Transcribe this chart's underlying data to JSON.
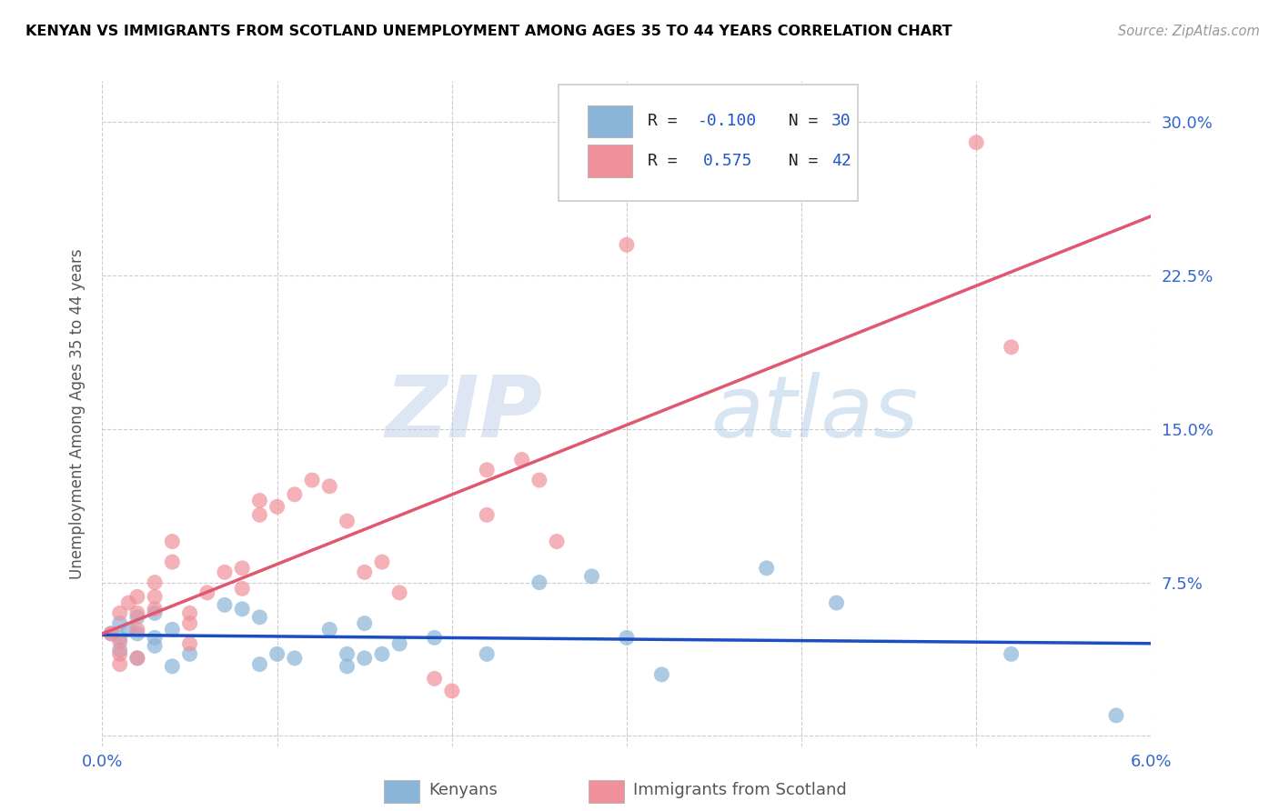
{
  "title": "KENYAN VS IMMIGRANTS FROM SCOTLAND UNEMPLOYMENT AMONG AGES 35 TO 44 YEARS CORRELATION CHART",
  "source": "Source: ZipAtlas.com",
  "ylabel": "Unemployment Among Ages 35 to 44 years",
  "xlim": [
    0.0,
    0.06
  ],
  "ylim": [
    -0.005,
    0.32
  ],
  "kenyan_color": "#8ab4d8",
  "scotland_color": "#f0909a",
  "kenyan_line_color": "#1a4fc4",
  "scotland_line_color": "#e05870",
  "watermark_zip": "ZIP",
  "watermark_atlas": "atlas",
  "kenyan_x": [
    0.0005,
    0.001,
    0.001,
    0.001,
    0.0015,
    0.002,
    0.002,
    0.002,
    0.003,
    0.003,
    0.003,
    0.004,
    0.004,
    0.005,
    0.007,
    0.008,
    0.009,
    0.009,
    0.01,
    0.011,
    0.013,
    0.014,
    0.014,
    0.015,
    0.015,
    0.016,
    0.017,
    0.019,
    0.022,
    0.025,
    0.028,
    0.03,
    0.032,
    0.038,
    0.042,
    0.052,
    0.058
  ],
  "kenyan_y": [
    0.05,
    0.048,
    0.055,
    0.042,
    0.052,
    0.05,
    0.058,
    0.038,
    0.048,
    0.044,
    0.06,
    0.034,
    0.052,
    0.04,
    0.064,
    0.062,
    0.058,
    0.035,
    0.04,
    0.038,
    0.052,
    0.034,
    0.04,
    0.055,
    0.038,
    0.04,
    0.045,
    0.048,
    0.04,
    0.075,
    0.078,
    0.048,
    0.03,
    0.082,
    0.065,
    0.04,
    0.01
  ],
  "scotland_x": [
    0.0005,
    0.001,
    0.001,
    0.001,
    0.001,
    0.0015,
    0.002,
    0.002,
    0.002,
    0.002,
    0.003,
    0.003,
    0.003,
    0.004,
    0.004,
    0.005,
    0.005,
    0.005,
    0.006,
    0.007,
    0.008,
    0.008,
    0.009,
    0.009,
    0.01,
    0.011,
    0.012,
    0.013,
    0.014,
    0.015,
    0.016,
    0.017,
    0.019,
    0.02,
    0.022,
    0.022,
    0.024,
    0.025,
    0.026,
    0.03,
    0.05,
    0.052
  ],
  "scotland_y": [
    0.05,
    0.046,
    0.04,
    0.035,
    0.06,
    0.065,
    0.068,
    0.06,
    0.052,
    0.038,
    0.075,
    0.068,
    0.062,
    0.095,
    0.085,
    0.06,
    0.055,
    0.045,
    0.07,
    0.08,
    0.082,
    0.072,
    0.115,
    0.108,
    0.112,
    0.118,
    0.125,
    0.122,
    0.105,
    0.08,
    0.085,
    0.07,
    0.028,
    0.022,
    0.13,
    0.108,
    0.135,
    0.125,
    0.095,
    0.24,
    0.29,
    0.19
  ],
  "ytick_labels_right": true,
  "xtick_positions": [
    0.0,
    0.01,
    0.02,
    0.03,
    0.04,
    0.05,
    0.06
  ],
  "ytick_positions": [
    0.0,
    0.075,
    0.15,
    0.225,
    0.3
  ]
}
